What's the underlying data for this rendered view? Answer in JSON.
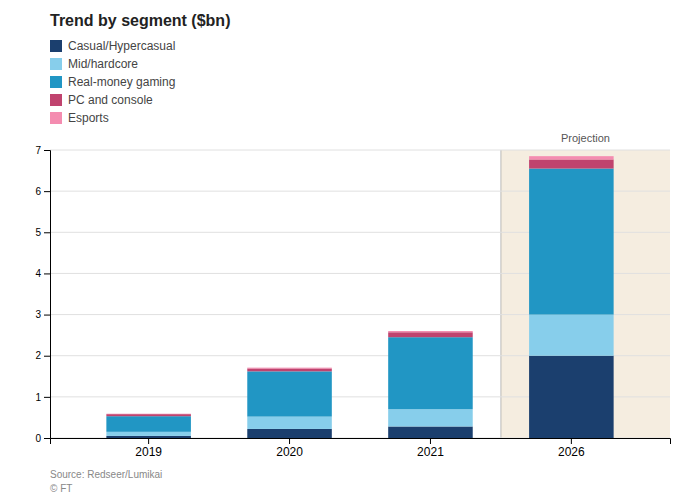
{
  "chart_data": {
    "type": "bar",
    "title": "Trend by segment ($bn)",
    "categories": [
      "2019",
      "2020",
      "2021",
      "2026"
    ],
    "series": [
      {
        "name": "Casual/Hypercasual",
        "color": "#1b3f6e",
        "values": [
          0.05,
          0.22,
          0.28,
          2.0
        ]
      },
      {
        "name": "Mid/hardcore",
        "color": "#87ceeb",
        "values": [
          0.1,
          0.3,
          0.42,
          1.0
        ]
      },
      {
        "name": "Real-money gaming",
        "color": "#2196c4",
        "values": [
          0.38,
          1.1,
          1.75,
          3.55
        ]
      },
      {
        "name": "PC and console",
        "color": "#c0436e",
        "values": [
          0.05,
          0.07,
          0.12,
          0.22
        ]
      },
      {
        "name": "Esports",
        "color": "#f48cb0",
        "values": [
          0.01,
          0.02,
          0.03,
          0.08
        ]
      }
    ],
    "stacked": true,
    "ylim": [
      0,
      7
    ],
    "yticks": [
      0,
      1,
      2,
      3,
      4,
      5,
      6,
      7
    ],
    "grid": true,
    "legend": "top-left",
    "annotations": [
      {
        "text": "Projection",
        "x": "2026",
        "color": "#f5ede0"
      },
      {
        "text": "Source: Redseer/Lumikai"
      },
      {
        "text": "© FT"
      }
    ]
  }
}
